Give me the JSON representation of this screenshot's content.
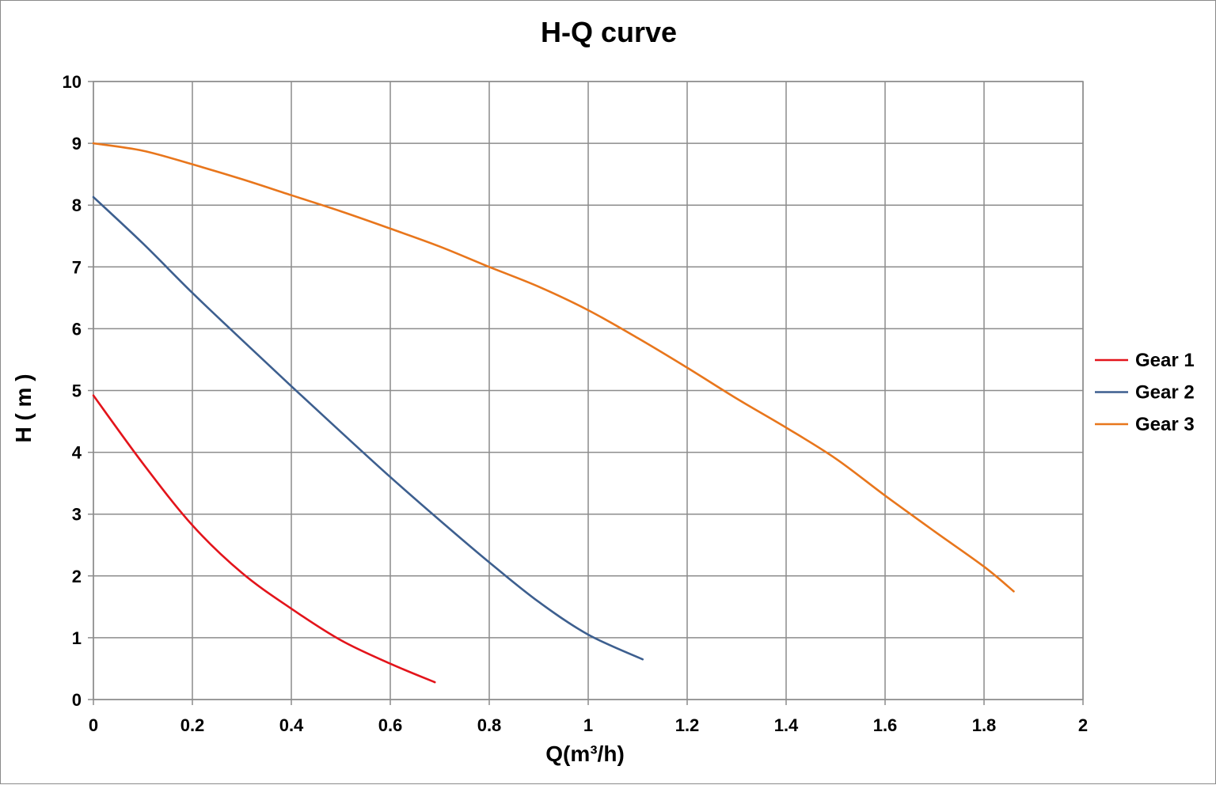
{
  "chart_data": {
    "type": "line",
    "title": "H-Q  curve",
    "xlabel": "Q(m³/h)",
    "ylabel": "H ( m )",
    "xlim": [
      0,
      2
    ],
    "ylim": [
      0,
      10
    ],
    "x_ticks": [
      "0",
      "0.2",
      "0.4",
      "0.6",
      "0.8",
      "1",
      "1.2",
      "1.4",
      "1.6",
      "1.8",
      "2"
    ],
    "x_tick_values": [
      0,
      0.2,
      0.4,
      0.6,
      0.8,
      1.0,
      1.2,
      1.4,
      1.6,
      1.8,
      2.0
    ],
    "y_ticks": [
      "0",
      "1",
      "2",
      "3",
      "4",
      "5",
      "6",
      "7",
      "8",
      "9",
      "10"
    ],
    "y_tick_values": [
      0,
      1,
      2,
      3,
      4,
      5,
      6,
      7,
      8,
      9,
      10
    ],
    "grid": true,
    "legend_position": "right",
    "series": [
      {
        "name": "Gear 1",
        "color": "#e3141b",
        "x": [
          0,
          0.1,
          0.2,
          0.3,
          0.4,
          0.5,
          0.6,
          0.69
        ],
        "y": [
          4.92,
          3.82,
          2.82,
          2.05,
          1.47,
          0.96,
          0.58,
          0.28
        ]
      },
      {
        "name": "Gear 2",
        "color": "#3d5f8f",
        "x": [
          0,
          0.1,
          0.2,
          0.3,
          0.4,
          0.5,
          0.6,
          0.7,
          0.8,
          0.9,
          1.0,
          1.11
        ],
        "y": [
          8.13,
          7.38,
          6.58,
          5.82,
          5.07,
          4.33,
          3.6,
          2.9,
          2.22,
          1.58,
          1.05,
          0.65
        ]
      },
      {
        "name": "Gear 3",
        "color": "#e8761c",
        "x": [
          0,
          0.1,
          0.2,
          0.3,
          0.4,
          0.5,
          0.6,
          0.7,
          0.8,
          0.9,
          1.0,
          1.1,
          1.2,
          1.3,
          1.4,
          1.5,
          1.6,
          1.7,
          1.8,
          1.86
        ],
        "y": [
          9.0,
          8.88,
          8.66,
          8.42,
          8.16,
          7.9,
          7.62,
          7.33,
          7.0,
          6.68,
          6.3,
          5.85,
          5.37,
          4.87,
          4.4,
          3.9,
          3.3,
          2.72,
          2.15,
          1.75
        ]
      }
    ]
  }
}
